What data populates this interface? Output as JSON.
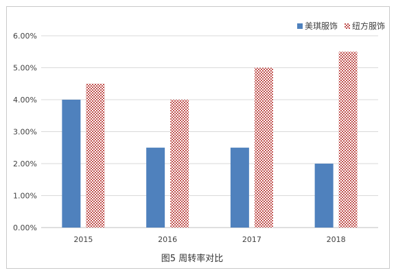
{
  "chart_data": {
    "type": "bar",
    "title": "",
    "caption": "图5  周转率对比",
    "xlabel": "",
    "ylabel": "",
    "categories": [
      "2015",
      "2016",
      "2017",
      "2018"
    ],
    "ylim": [
      0,
      0.06
    ],
    "y_ticks": [
      0,
      0.01,
      0.02,
      0.03,
      0.04,
      0.05,
      0.06
    ],
    "y_tick_labels": [
      "0.00%",
      "1.00%",
      "2.00%",
      "3.00%",
      "4.00%",
      "5.00%",
      "6.00%"
    ],
    "grid": true,
    "legend_position": "top-right",
    "series": [
      {
        "name": "美琪服饰",
        "values": [
          0.04,
          0.025,
          0.025,
          0.02
        ],
        "color": "#4f81bd",
        "fill": "solid"
      },
      {
        "name": "纽方服饰",
        "values": [
          0.045,
          0.04,
          0.05,
          0.055
        ],
        "color": "#c0504d",
        "fill": "checker"
      }
    ]
  }
}
